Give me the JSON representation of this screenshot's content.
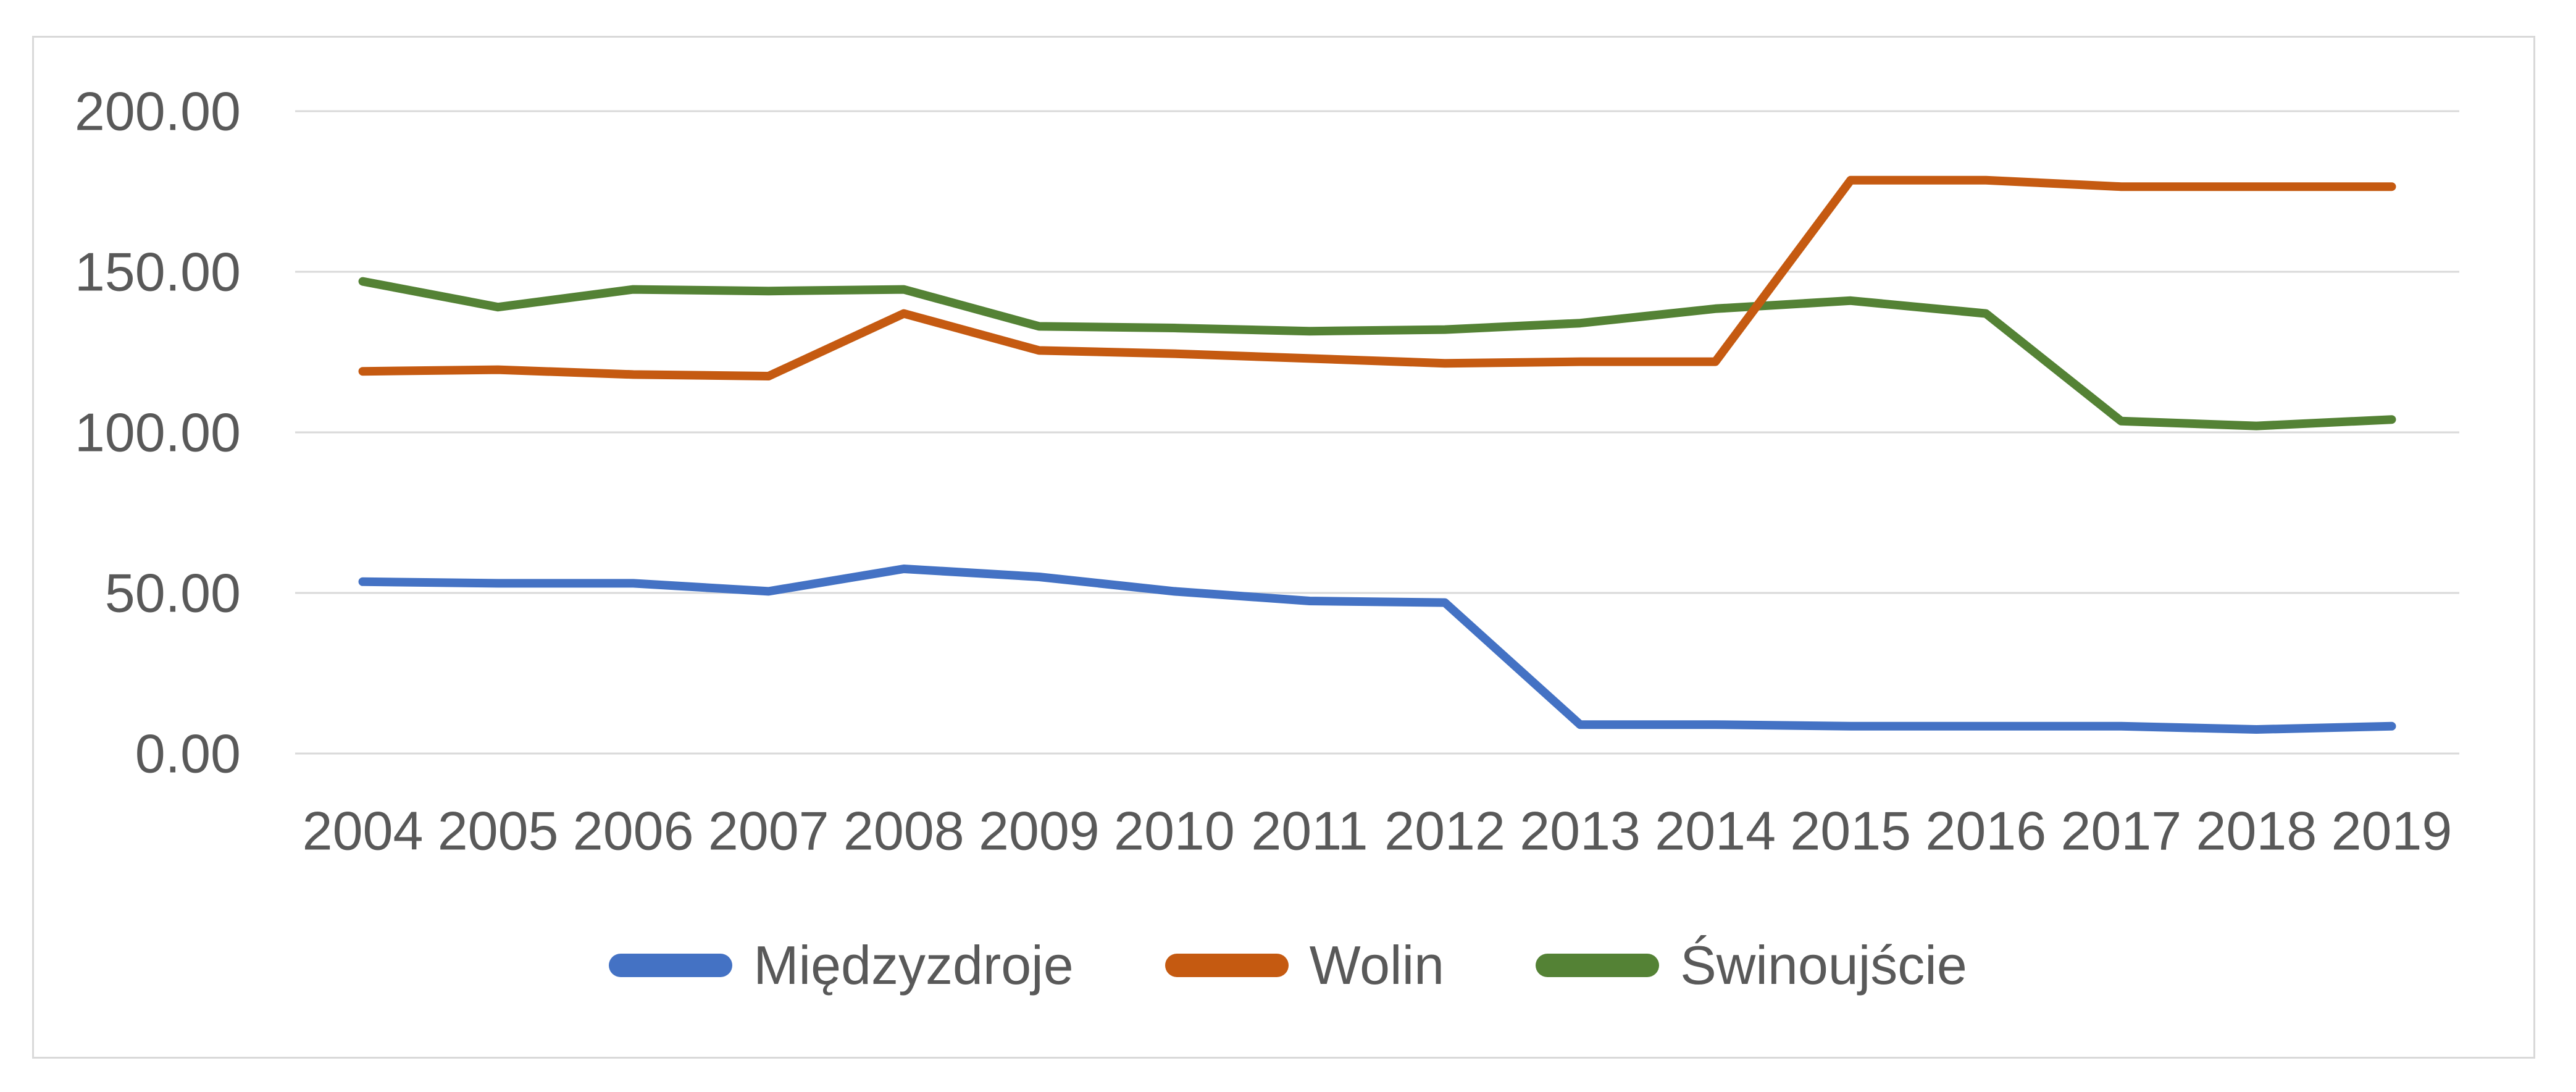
{
  "chart_data": {
    "type": "line",
    "title": "",
    "xlabel": "",
    "ylabel": "",
    "categories": [
      "2004",
      "2005",
      "2006",
      "2007",
      "2008",
      "2009",
      "2010",
      "2011",
      "2012",
      "2013",
      "2014",
      "2015",
      "2016",
      "2017",
      "2018",
      "2019"
    ],
    "series": [
      {
        "id": "miedzyzdroje",
        "name": "Międzyzdroje",
        "color": "#4472C4",
        "values": [
          53.5,
          53,
          53,
          50.5,
          57.5,
          55,
          50.5,
          47.5,
          47,
          9,
          9,
          8.5,
          8.5,
          8.5,
          7.5,
          8.5
        ]
      },
      {
        "id": "wolin",
        "name": "Wolin",
        "color": "#C55A11",
        "values": [
          119,
          119.5,
          118,
          117.5,
          137,
          125.5,
          124.5,
          123,
          121.5,
          122,
          122,
          178.5,
          178.5,
          176.5,
          176.5,
          176.5
        ]
      },
      {
        "id": "swinoujscie",
        "name": "Świnoujście",
        "color": "#548235",
        "values": [
          147,
          139,
          144.5,
          144,
          144.5,
          133,
          132.5,
          131.5,
          132,
          134,
          138.5,
          141,
          137,
          103.5,
          102,
          104
        ]
      }
    ],
    "y_ticks": [
      {
        "value": 0,
        "label": "0.00"
      },
      {
        "value": 50,
        "label": "50.00"
      },
      {
        "value": 100,
        "label": "100.00"
      },
      {
        "value": 150,
        "label": "150.00"
      },
      {
        "value": 200,
        "label": "200.00"
      }
    ],
    "ylim": [
      0,
      200
    ],
    "grid": true,
    "legend_position": "bottom",
    "colors": {
      "grid": "#d9d9d9",
      "frame_border": "#d9d9d9",
      "axis_text": "#595959",
      "legend_text": "#595959",
      "background": "#ffffff"
    }
  }
}
